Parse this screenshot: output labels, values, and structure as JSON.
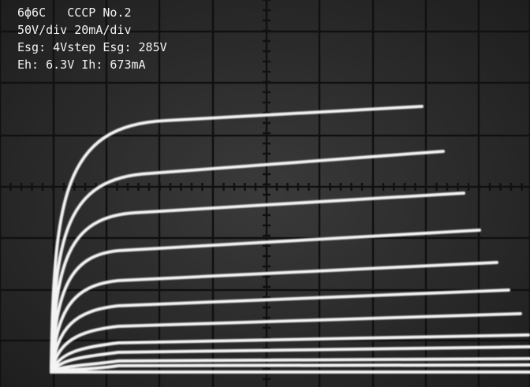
{
  "overlay": {
    "lines": [
      "6ф6С   СССР No.2",
      "50V/div 20mA/div",
      "Esg: 4Vstep Esg: 285V",
      "Eh: 6.3V Ih: 673mA"
    ]
  }
}
